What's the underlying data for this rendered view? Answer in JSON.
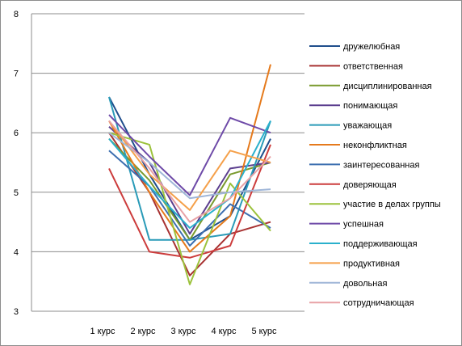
{
  "chart_data": {
    "type": "line",
    "title": "",
    "xlabel": "",
    "ylabel": "",
    "categories": [
      "1 курс",
      "2 курс",
      "3 курс",
      "4 курс",
      "5 курс"
    ],
    "ylim": [
      3,
      8
    ],
    "yticks": [
      3,
      4,
      5,
      6,
      7,
      8
    ],
    "grid": true,
    "legend_position": "right",
    "series": [
      {
        "name": "дружелюбная",
        "color": "#1f4e8c",
        "values": [
          6.6,
          5.3,
          4.2,
          4.6,
          5.9
        ]
      },
      {
        "name": "ответственная",
        "color": "#a83232",
        "values": [
          6.0,
          5.0,
          3.6,
          4.3,
          4.5
        ]
      },
      {
        "name": "дисциплинированная",
        "color": "#7a9a2e",
        "values": [
          5.9,
          5.2,
          4.2,
          5.3,
          5.5
        ]
      },
      {
        "name": "понимающая",
        "color": "#5c3f8f",
        "values": [
          6.1,
          5.5,
          4.3,
          5.4,
          5.5
        ]
      },
      {
        "name": "уважающая",
        "color": "#2a9bb8",
        "values": [
          6.6,
          4.2,
          4.2,
          4.3,
          6.2
        ]
      },
      {
        "name": "неконфликтная",
        "color": "#e57a1c",
        "values": [
          6.2,
          5.0,
          4.0,
          4.6,
          7.15
        ]
      },
      {
        "name": "заинтересованная",
        "color": "#3d6fb0",
        "values": [
          5.7,
          5.1,
          4.1,
          4.8,
          4.4
        ]
      },
      {
        "name": "доверяющая",
        "color": "#cc3c3c",
        "values": [
          5.4,
          4.0,
          3.9,
          4.1,
          5.8
        ]
      },
      {
        "name": "участие в делах группы",
        "color": "#9cc23c",
        "values": [
          6.0,
          5.8,
          3.45,
          5.15,
          4.35
        ]
      },
      {
        "name": "успешная",
        "color": "#6e4aa8",
        "values": [
          6.3,
          5.6,
          4.95,
          6.25,
          6.0
        ]
      },
      {
        "name": "поддерживающая",
        "color": "#2ab0cc",
        "values": [
          5.9,
          5.1,
          4.4,
          4.9,
          6.2
        ]
      },
      {
        "name": "продуктивная",
        "color": "#f5a04a",
        "values": [
          6.2,
          5.3,
          4.7,
          5.7,
          5.5
        ]
      },
      {
        "name": "довольная",
        "color": "#9fb6d8",
        "values": [
          6.0,
          5.5,
          4.9,
          5.0,
          5.05
        ]
      },
      {
        "name": "сотрудничающая",
        "color": "#e8a2a6",
        "values": [
          6.2,
          5.4,
          4.5,
          4.9,
          5.6
        ]
      }
    ]
  }
}
